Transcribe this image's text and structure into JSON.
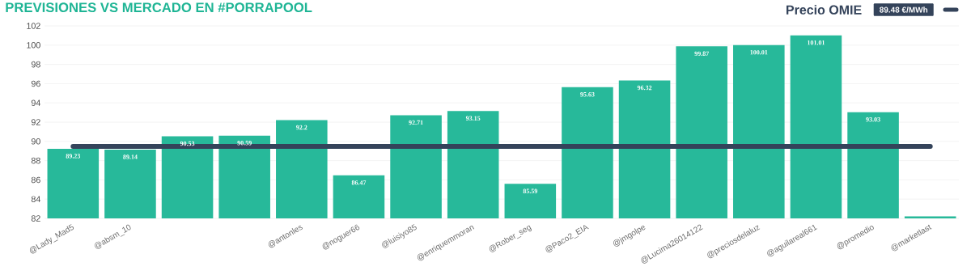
{
  "chart_data": {
    "type": "bar",
    "title": "PREVISIONES VS MERCADO EN #PORRAPOOL",
    "categories": [
      "@Lady_Mad5",
      "@absm_10",
      null,
      null,
      "@antonles",
      "@noguer66",
      "@luisiyo85",
      "@enriquemmoran",
      "@Rober_seg",
      "@Paco2_EIA",
      "@jmgolpe",
      "@Lucima26014122",
      "@preciosdelaluz",
      "@aguilareal661",
      "@promedio",
      "@marketlast"
    ],
    "series": [
      {
        "color": "#27b99a",
        "values": [
          89.23,
          89.14,
          90.53,
          90.59,
          92.2,
          86.47,
          92.71,
          93.15,
          85.59,
          95.63,
          96.32,
          99.87,
          100.01,
          101.01,
          93.03,
          82.2
        ],
        "value_labels": [
          "89.23",
          "89.14",
          "90.53",
          "90.59",
          "92.2",
          "86.47",
          "92.71",
          "93.15",
          "85.59",
          "95.63",
          "96.32",
          "99.87",
          "100.01",
          "101.01",
          "93.03",
          null
        ]
      },
      {
        "type": "line",
        "name": "Precio OMIE",
        "color": "#34435a",
        "values": [
          89.48,
          89.48,
          89.48,
          89.48,
          89.48,
          89.48,
          89.48,
          89.48,
          89.48,
          89.48,
          89.48,
          89.48,
          89.48,
          89.48,
          89.48,
          89.48
        ]
      }
    ],
    "annotations": [
      "89.48 €/MWh"
    ],
    "ylim": [
      82,
      102
    ],
    "yticks": [
      82,
      84,
      86,
      88,
      90,
      92,
      94,
      96,
      98,
      100,
      102
    ],
    "grid": "y",
    "legend": "top right"
  }
}
